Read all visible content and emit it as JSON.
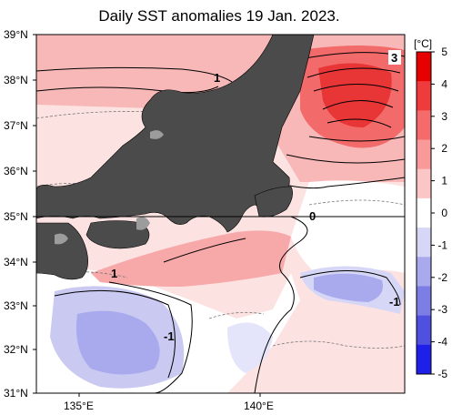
{
  "title": "Daily SST anomalies 19 Jan. 2023.",
  "map": {
    "lat_labels": [
      "39°N",
      "38°N",
      "37°N",
      "36°N",
      "35°N",
      "34°N",
      "33°N",
      "32°N",
      "31°N"
    ],
    "lon_labels": [
      "135°E",
      "140°E"
    ],
    "contour_labels": [
      "1",
      "3",
      "0",
      "1",
      "-1",
      "-1"
    ],
    "land_color": "#4b4b4b"
  },
  "colorbar": {
    "unit": "[°C]",
    "ticks": [
      "5",
      "4",
      "3",
      "2",
      "1",
      "0",
      "-1",
      "-2",
      "-3",
      "-4",
      "-5"
    ],
    "colors": [
      "#e60000",
      "#ef3b3b",
      "#f56b6b",
      "#f99999",
      "#fcc6c6",
      "#ffffff",
      "#d6d6f6",
      "#a9a9ee",
      "#7d7de6",
      "#5050e0",
      "#1f1fea"
    ]
  }
}
